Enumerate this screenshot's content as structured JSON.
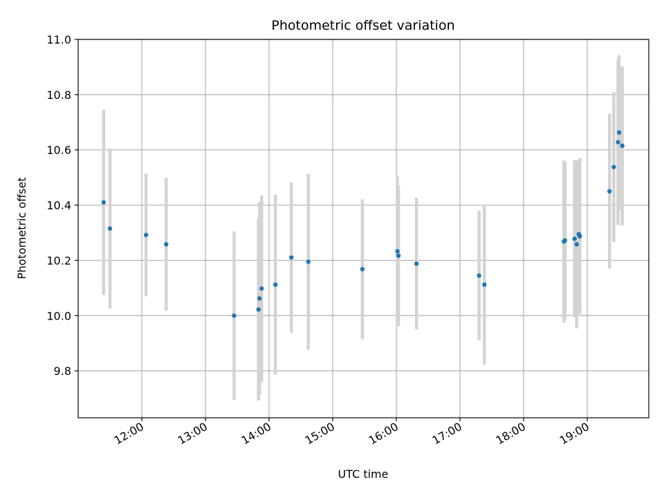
{
  "chart_data": {
    "type": "scatter",
    "title": "Photometric offset variation",
    "xlabel": "UTC time",
    "ylabel": "Photometric offset",
    "xlim": [
      "11:00",
      "19:58"
    ],
    "ylim": [
      9.63,
      11.0
    ],
    "x_ticks": [
      "12:00",
      "13:00",
      "14:00",
      "15:00",
      "16:00",
      "17:00",
      "18:00",
      "19:00"
    ],
    "y_ticks": [
      "9.8",
      "10.0",
      "10.2",
      "10.4",
      "10.6",
      "10.8",
      "11.0"
    ],
    "grid": true,
    "colors": {
      "points": "#1f77b4",
      "errorbars": "#d3d3d3",
      "grid": "#b0b0b0"
    },
    "series": [
      {
        "points": [
          {
            "x": "11:24",
            "y": 10.41,
            "err": 0.335
          },
          {
            "x": "11:30",
            "y": 10.315,
            "err": 0.29
          },
          {
            "x": "12:04",
            "y": 10.292,
            "err": 0.222
          },
          {
            "x": "12:23",
            "y": 10.258,
            "err": 0.24
          },
          {
            "x": "13:27",
            "y": 10.0,
            "err": 0.305
          },
          {
            "x": "13:50",
            "y": 10.022,
            "err": 0.33
          },
          {
            "x": "13:51",
            "y": 10.062,
            "err": 0.35
          },
          {
            "x": "13:53",
            "y": 10.098,
            "err": 0.338
          },
          {
            "x": "14:06",
            "y": 10.112,
            "err": 0.325
          },
          {
            "x": "14:21",
            "y": 10.21,
            "err": 0.272
          },
          {
            "x": "14:37",
            "y": 10.195,
            "err": 0.318
          },
          {
            "x": "15:28",
            "y": 10.168,
            "err": 0.253
          },
          {
            "x": "16:01",
            "y": 10.233,
            "err": 0.272
          },
          {
            "x": "16:02",
            "y": 10.217,
            "err": 0.254
          },
          {
            "x": "16:19",
            "y": 10.188,
            "err": 0.238
          },
          {
            "x": "17:18",
            "y": 10.145,
            "err": 0.235
          },
          {
            "x": "17:23",
            "y": 10.112,
            "err": 0.29
          },
          {
            "x": "18:38",
            "y": 10.268,
            "err": 0.294
          },
          {
            "x": "18:39",
            "y": 10.272,
            "err": 0.286
          },
          {
            "x": "18:48",
            "y": 10.278,
            "err": 0.284
          },
          {
            "x": "18:50",
            "y": 10.258,
            "err": 0.304
          },
          {
            "x": "18:52",
            "y": 10.295,
            "err": 0.268
          },
          {
            "x": "18:53",
            "y": 10.287,
            "err": 0.283
          },
          {
            "x": "19:21",
            "y": 10.45,
            "err": 0.28
          },
          {
            "x": "19:25",
            "y": 10.538,
            "err": 0.272
          },
          {
            "x": "19:29",
            "y": 10.628,
            "err": 0.3
          },
          {
            "x": "19:30",
            "y": 10.663,
            "err": 0.28
          },
          {
            "x": "19:33",
            "y": 10.615,
            "err": 0.288
          }
        ]
      }
    ]
  }
}
